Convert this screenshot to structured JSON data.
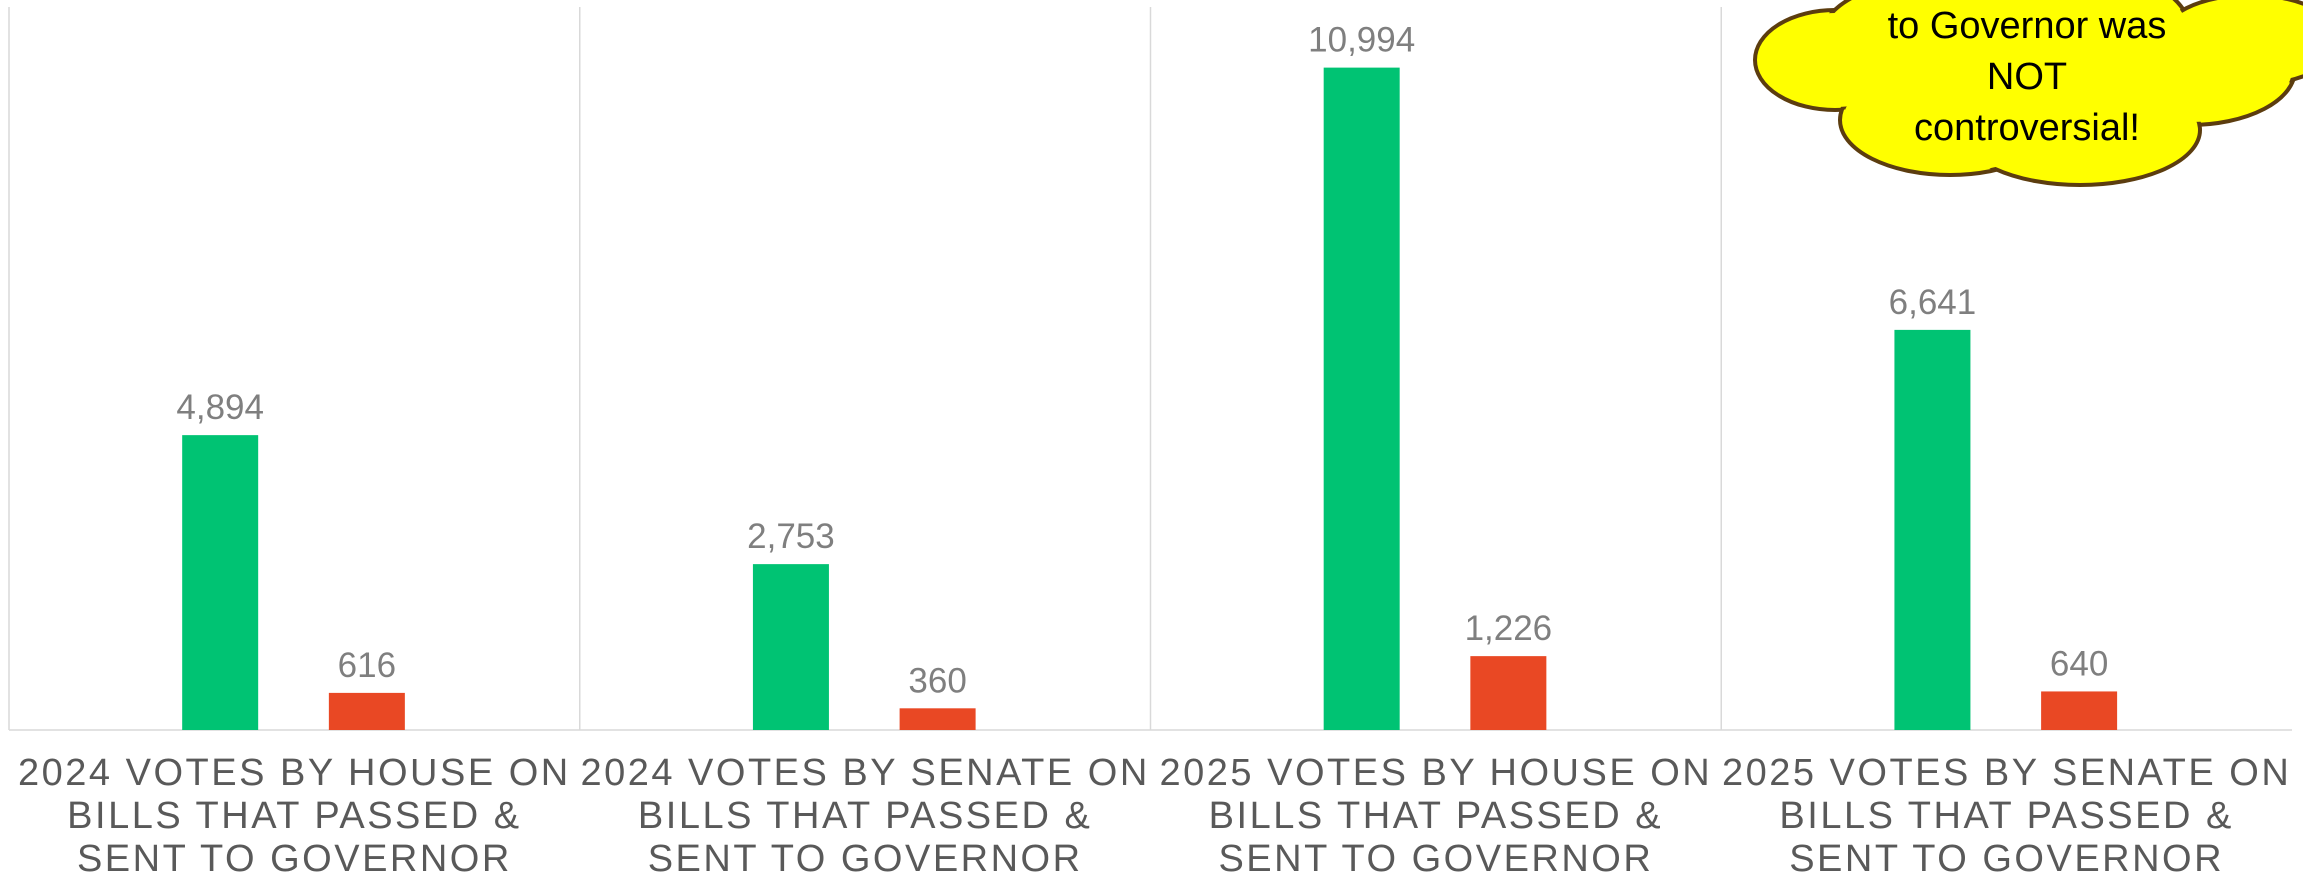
{
  "chart_data": {
    "type": "bar",
    "categories": [
      "2024 VOTES BY HOUSE ON BILLS THAT PASSED & SENT TO GOVERNOR",
      "2024 VOTES BY SENATE ON BILLS THAT PASSED & SENT TO GOVERNOR",
      "2025 VOTES BY HOUSE ON BILLS THAT PASSED & SENT TO GOVERNOR",
      "2025 VOTES BY SENATE ON BILLS THAT PASSED & SENT TO GOVERNOR"
    ],
    "series": [
      {
        "color": "#00c373",
        "values": [
          4894,
          2753,
          10994,
          6641
        ],
        "value_labels": [
          "4,894",
          "2,753",
          "10,994",
          "6,641"
        ]
      },
      {
        "color": "#e94824",
        "values": [
          616,
          360,
          1226,
          640
        ],
        "value_labels": [
          "616",
          "360",
          "1,226",
          "640"
        ]
      }
    ],
    "ylim": [
      0,
      12000
    ],
    "annotations": [
      "to Governor was",
      "NOT",
      "controversial!"
    ]
  }
}
